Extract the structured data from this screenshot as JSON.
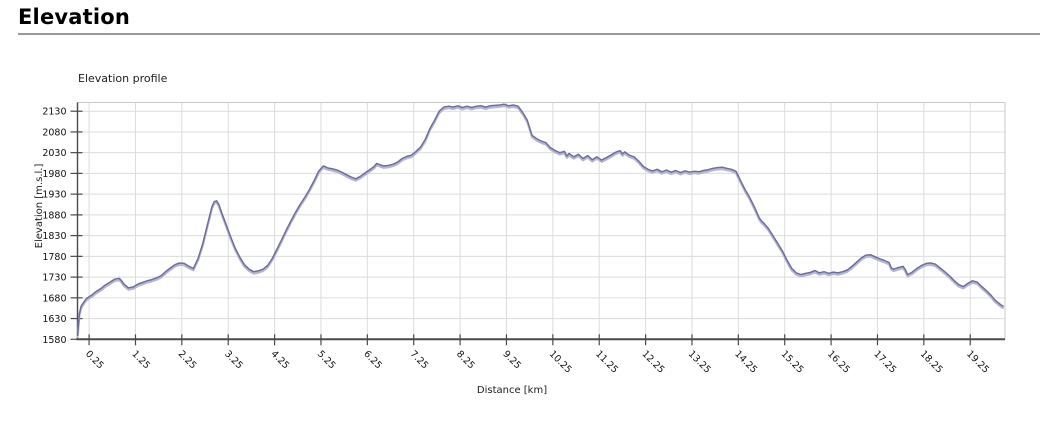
{
  "header": {
    "title": "Elevation"
  },
  "chart": {
    "title": "Elevation profile"
  },
  "chart_data": {
    "type": "line",
    "title": "Elevation profile",
    "xlabel": "Distance [km]",
    "ylabel": "Elevation [m.s.l.]",
    "xlim": [
      0,
      20
    ],
    "ylim": [
      1580,
      2151
    ],
    "grid": true,
    "legend_position": "none",
    "y_ticks": [
      1580,
      1630,
      1680,
      1730,
      1780,
      1830,
      1880,
      1930,
      1980,
      2030,
      2080,
      2130
    ],
    "x_ticks": [
      0.25,
      1.25,
      2.25,
      3.25,
      4.25,
      5.25,
      6.25,
      7.25,
      8.25,
      9.25,
      10.25,
      11.25,
      12.25,
      13.25,
      14.25,
      15.25,
      16.25,
      17.25,
      18.25,
      19.25
    ],
    "x_tick_labels": [
      "0.25",
      "1.25",
      "2.25",
      "3.25",
      "4.25",
      "5.25",
      "6.25",
      "7.25",
      "8.25",
      "9.25",
      "10.25",
      "11.25",
      "12.25",
      "13.25",
      "14.25",
      "15.25",
      "16.25",
      "17.25",
      "18.25",
      "19.25"
    ],
    "colors": {
      "line": "#6e6e9c",
      "line_halo": "#b5b5d4",
      "grid": "#dcdcdc",
      "plot_border": "#c8c8c8",
      "axis": "#4a4a4a",
      "tick_label": "#111111"
    },
    "series": [
      {
        "name": "Elevation profile",
        "points": [
          [
            0,
            1588
          ],
          [
            0.04,
            1642
          ],
          [
            0.08,
            1660
          ],
          [
            0.15,
            1672
          ],
          [
            0.2,
            1679
          ],
          [
            0.3,
            1686
          ],
          [
            0.4,
            1695
          ],
          [
            0.5,
            1702
          ],
          [
            0.6,
            1711
          ],
          [
            0.7,
            1718
          ],
          [
            0.8,
            1725
          ],
          [
            0.9,
            1727
          ],
          [
            0.95,
            1721
          ],
          [
            1.0,
            1713
          ],
          [
            1.1,
            1704
          ],
          [
            1.2,
            1706
          ],
          [
            1.3,
            1713
          ],
          [
            1.4,
            1717
          ],
          [
            1.5,
            1721
          ],
          [
            1.6,
            1724
          ],
          [
            1.7,
            1728
          ],
          [
            1.8,
            1733
          ],
          [
            1.9,
            1743
          ],
          [
            2.0,
            1752
          ],
          [
            2.1,
            1760
          ],
          [
            2.2,
            1764
          ],
          [
            2.3,
            1763
          ],
          [
            2.4,
            1756
          ],
          [
            2.5,
            1751
          ],
          [
            2.6,
            1775
          ],
          [
            2.7,
            1810
          ],
          [
            2.8,
            1855
          ],
          [
            2.9,
            1900
          ],
          [
            2.95,
            1912
          ],
          [
            3.0,
            1914
          ],
          [
            3.05,
            1905
          ],
          [
            3.1,
            1888
          ],
          [
            3.2,
            1858
          ],
          [
            3.3,
            1828
          ],
          [
            3.4,
            1800
          ],
          [
            3.5,
            1778
          ],
          [
            3.6,
            1760
          ],
          [
            3.7,
            1749
          ],
          [
            3.8,
            1743
          ],
          [
            3.9,
            1745
          ],
          [
            4.0,
            1749
          ],
          [
            4.1,
            1758
          ],
          [
            4.2,
            1775
          ],
          [
            4.3,
            1797
          ],
          [
            4.4,
            1820
          ],
          [
            4.5,
            1843
          ],
          [
            4.6,
            1865
          ],
          [
            4.7,
            1886
          ],
          [
            4.8,
            1905
          ],
          [
            4.9,
            1922
          ],
          [
            5.0,
            1941
          ],
          [
            5.1,
            1962
          ],
          [
            5.2,
            1985
          ],
          [
            5.3,
            1998
          ],
          [
            5.35,
            1996
          ],
          [
            5.4,
            1993
          ],
          [
            5.5,
            1991
          ],
          [
            5.6,
            1988
          ],
          [
            5.7,
            1983
          ],
          [
            5.8,
            1977
          ],
          [
            5.9,
            1971
          ],
          [
            6.0,
            1967
          ],
          [
            6.1,
            1973
          ],
          [
            6.2,
            1981
          ],
          [
            6.3,
            1989
          ],
          [
            6.4,
            1997
          ],
          [
            6.45,
            2004
          ],
          [
            6.5,
            2002
          ],
          [
            6.6,
            1998
          ],
          [
            6.7,
            1999
          ],
          [
            6.8,
            2002
          ],
          [
            6.9,
            2007
          ],
          [
            7.0,
            2016
          ],
          [
            7.1,
            2021
          ],
          [
            7.2,
            2024
          ],
          [
            7.3,
            2033
          ],
          [
            7.4,
            2044
          ],
          [
            7.5,
            2062
          ],
          [
            7.6,
            2088
          ],
          [
            7.7,
            2108
          ],
          [
            7.8,
            2130
          ],
          [
            7.9,
            2140
          ],
          [
            8.0,
            2142
          ],
          [
            8.1,
            2140
          ],
          [
            8.2,
            2143
          ],
          [
            8.3,
            2139
          ],
          [
            8.4,
            2142
          ],
          [
            8.5,
            2139
          ],
          [
            8.6,
            2142
          ],
          [
            8.7,
            2143
          ],
          [
            8.8,
            2140
          ],
          [
            8.9,
            2143
          ],
          [
            9.0,
            2144
          ],
          [
            9.1,
            2145
          ],
          [
            9.2,
            2147
          ],
          [
            9.3,
            2143
          ],
          [
            9.4,
            2145
          ],
          [
            9.5,
            2142
          ],
          [
            9.6,
            2127
          ],
          [
            9.7,
            2108
          ],
          [
            9.75,
            2090
          ],
          [
            9.8,
            2072
          ],
          [
            9.9,
            2064
          ],
          [
            10.0,
            2058
          ],
          [
            10.1,
            2054
          ],
          [
            10.2,
            2042
          ],
          [
            10.3,
            2035
          ],
          [
            10.4,
            2030
          ],
          [
            10.5,
            2033
          ],
          [
            10.55,
            2022
          ],
          [
            10.6,
            2028
          ],
          [
            10.7,
            2020
          ],
          [
            10.8,
            2026
          ],
          [
            10.9,
            2016
          ],
          [
            11.0,
            2023
          ],
          [
            11.1,
            2013
          ],
          [
            11.2,
            2020
          ],
          [
            11.3,
            2012
          ],
          [
            11.4,
            2018
          ],
          [
            11.5,
            2024
          ],
          [
            11.6,
            2031
          ],
          [
            11.7,
            2035
          ],
          [
            11.75,
            2027
          ],
          [
            11.8,
            2032
          ],
          [
            11.9,
            2024
          ],
          [
            12.0,
            2020
          ],
          [
            12.1,
            2010
          ],
          [
            12.2,
            1997
          ],
          [
            12.3,
            1990
          ],
          [
            12.4,
            1986
          ],
          [
            12.5,
            1990
          ],
          [
            12.6,
            1984
          ],
          [
            12.7,
            1988
          ],
          [
            12.8,
            1983
          ],
          [
            12.9,
            1987
          ],
          [
            13.0,
            1982
          ],
          [
            13.1,
            1986
          ],
          [
            13.2,
            1983
          ],
          [
            13.3,
            1985
          ],
          [
            13.4,
            1984
          ],
          [
            13.5,
            1987
          ],
          [
            13.6,
            1989
          ],
          [
            13.7,
            1992
          ],
          [
            13.8,
            1994
          ],
          [
            13.9,
            1995
          ],
          [
            14.0,
            1992
          ],
          [
            14.1,
            1990
          ],
          [
            14.2,
            1985
          ],
          [
            14.3,
            1962
          ],
          [
            14.4,
            1940
          ],
          [
            14.5,
            1921
          ],
          [
            14.6,
            1898
          ],
          [
            14.7,
            1873
          ],
          [
            14.75,
            1865
          ],
          [
            14.8,
            1860
          ],
          [
            14.9,
            1847
          ],
          [
            15.0,
            1829
          ],
          [
            15.1,
            1811
          ],
          [
            15.2,
            1793
          ],
          [
            15.3,
            1771
          ],
          [
            15.4,
            1751
          ],
          [
            15.5,
            1740
          ],
          [
            15.6,
            1736
          ],
          [
            15.7,
            1739
          ],
          [
            15.8,
            1741
          ],
          [
            15.9,
            1746
          ],
          [
            16.0,
            1740
          ],
          [
            16.1,
            1743
          ],
          [
            16.2,
            1739
          ],
          [
            16.3,
            1742
          ],
          [
            16.4,
            1740
          ],
          [
            16.5,
            1743
          ],
          [
            16.6,
            1747
          ],
          [
            16.7,
            1756
          ],
          [
            16.8,
            1766
          ],
          [
            16.9,
            1776
          ],
          [
            17.0,
            1783
          ],
          [
            17.1,
            1784
          ],
          [
            17.2,
            1779
          ],
          [
            17.3,
            1774
          ],
          [
            17.4,
            1770
          ],
          [
            17.5,
            1765
          ],
          [
            17.55,
            1752
          ],
          [
            17.6,
            1749
          ],
          [
            17.7,
            1753
          ],
          [
            17.8,
            1756
          ],
          [
            17.85,
            1748
          ],
          [
            17.9,
            1736
          ],
          [
            18.0,
            1742
          ],
          [
            18.1,
            1751
          ],
          [
            18.2,
            1758
          ],
          [
            18.3,
            1763
          ],
          [
            18.4,
            1764
          ],
          [
            18.5,
            1761
          ],
          [
            18.6,
            1752
          ],
          [
            18.7,
            1743
          ],
          [
            18.8,
            1733
          ],
          [
            18.9,
            1722
          ],
          [
            19.0,
            1712
          ],
          [
            19.1,
            1707
          ],
          [
            19.2,
            1715
          ],
          [
            19.3,
            1721
          ],
          [
            19.4,
            1718
          ],
          [
            19.5,
            1707
          ],
          [
            19.6,
            1697
          ],
          [
            19.7,
            1686
          ],
          [
            19.75,
            1679
          ],
          [
            19.8,
            1673
          ],
          [
            19.9,
            1664
          ],
          [
            19.97,
            1659
          ]
        ]
      }
    ]
  }
}
